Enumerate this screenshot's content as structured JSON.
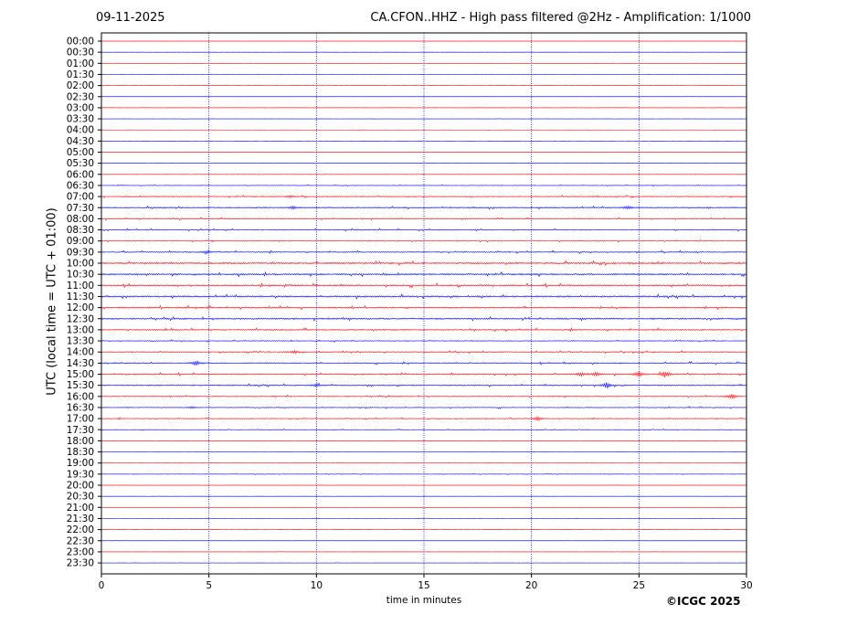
{
  "header": {
    "date": "09-11-2025",
    "title": "CA.CFON..HHZ - High pass filtered @2Hz - Amplification: 1/1000"
  },
  "footer": {
    "copyright": "©ICGC 2025"
  },
  "colors": {
    "row_even": "#ff0000",
    "row_odd": "#0000ff",
    "grid": "#00008b"
  },
  "chart_data": {
    "type": "line",
    "title": "CA.CFON..HHZ - High pass filtered @2Hz - Amplification: 1/1000",
    "xlabel": "time in minutes",
    "ylabel": "UTC (local time = UTC + 01:00)",
    "xlim": [
      0,
      30
    ],
    "x_ticks": [
      0,
      5,
      10,
      15,
      20,
      25,
      30
    ],
    "grid": "vertical dotted",
    "row_labels": [
      "00:00",
      "00:30",
      "01:00",
      "01:30",
      "02:00",
      "02:30",
      "03:00",
      "03:30",
      "04:00",
      "04:30",
      "05:00",
      "05:30",
      "06:00",
      "06:30",
      "07:00",
      "07:30",
      "08:00",
      "08:30",
      "09:00",
      "09:30",
      "10:00",
      "10:30",
      "11:00",
      "11:30",
      "12:00",
      "12:30",
      "13:00",
      "13:30",
      "14:00",
      "14:30",
      "15:00",
      "15:30",
      "16:00",
      "16:30",
      "17:00",
      "17:30",
      "18:00",
      "18:30",
      "19:00",
      "19:30",
      "20:00",
      "20:30",
      "21:00",
      "21:30",
      "22:00",
      "22:30",
      "23:00",
      "23:30"
    ],
    "row_noise": [
      0.05,
      0.05,
      0.05,
      0.05,
      0.05,
      0.05,
      0.05,
      0.05,
      0.05,
      0.05,
      0.05,
      0.05,
      0.1,
      0.2,
      0.35,
      0.45,
      0.35,
      0.35,
      0.3,
      0.4,
      0.6,
      0.6,
      0.55,
      0.6,
      0.5,
      0.55,
      0.45,
      0.3,
      0.35,
      0.4,
      0.45,
      0.45,
      0.35,
      0.3,
      0.3,
      0.2,
      0.05,
      0.05,
      0.1,
      0.15,
      0.05,
      0.05,
      0.05,
      0.05,
      0.05,
      0.05,
      0.05,
      0.05
    ],
    "events": [
      {
        "row": "07:00",
        "minute": 8.8,
        "amplitude": 1.5
      },
      {
        "row": "07:30",
        "minute": 8.9,
        "amplitude": 1.5
      },
      {
        "row": "07:30",
        "minute": 24.5,
        "amplitude": 1.8
      },
      {
        "row": "09:30",
        "minute": 4.9,
        "amplitude": 2
      },
      {
        "row": "14:00",
        "minute": 9.0,
        "amplitude": 2
      },
      {
        "row": "14:30",
        "minute": 4.4,
        "amplitude": 3.5
      },
      {
        "row": "15:00",
        "minute": 22.3,
        "amplitude": 2.2
      },
      {
        "row": "15:00",
        "minute": 23.0,
        "amplitude": 2
      },
      {
        "row": "15:00",
        "minute": 25.0,
        "amplitude": 3.5
      },
      {
        "row": "15:00",
        "minute": 26.2,
        "amplitude": 4
      },
      {
        "row": "15:30",
        "minute": 10.0,
        "amplitude": 1.8
      },
      {
        "row": "15:30",
        "minute": 23.5,
        "amplitude": 3.5
      },
      {
        "row": "16:00",
        "minute": 29.3,
        "amplitude": 3.5
      },
      {
        "row": "16:30",
        "minute": 4.2,
        "amplitude": 1.5
      },
      {
        "row": "17:00",
        "minute": 20.3,
        "amplitude": 2.5
      }
    ]
  }
}
